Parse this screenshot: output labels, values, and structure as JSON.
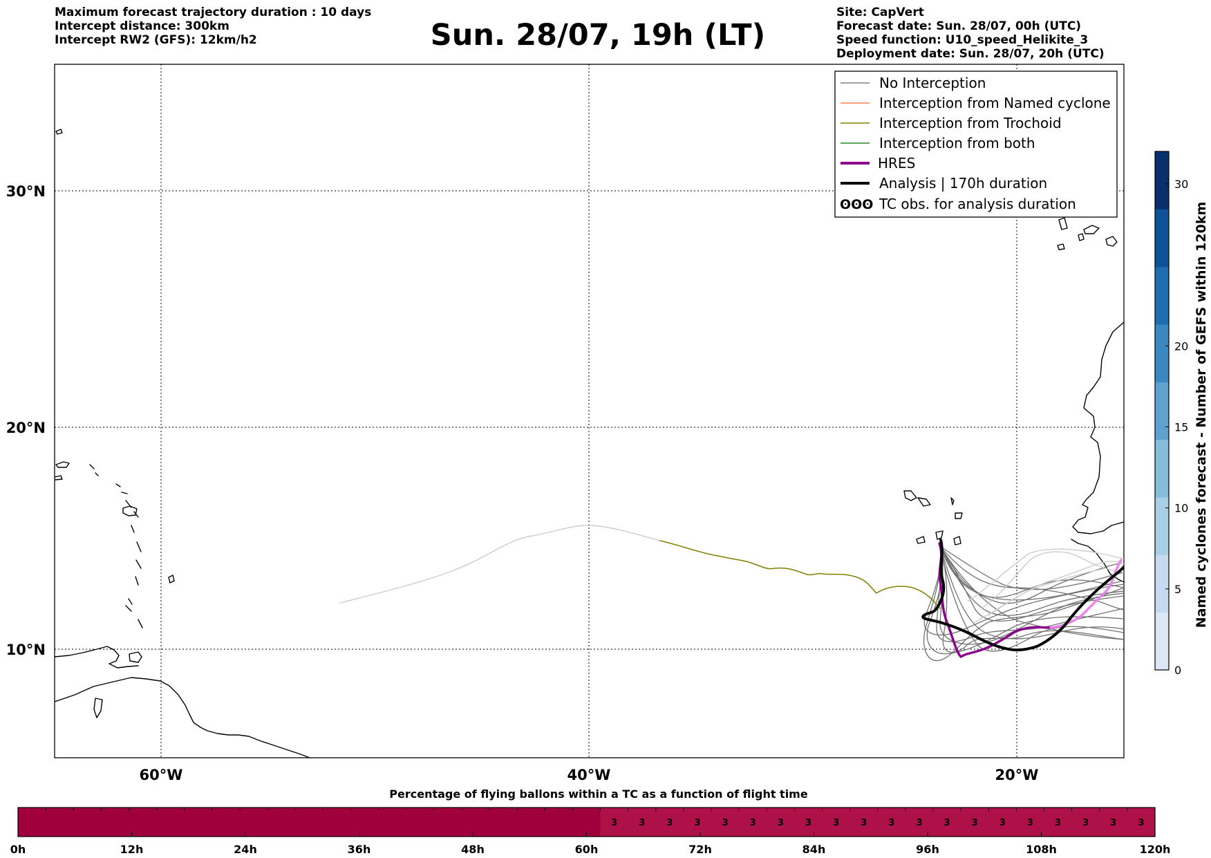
{
  "header_left": [
    "Maximum forecast trajectory duration : 10 days",
    "Intercept distance: 300km",
    "Intercept RW2 (GFS):  12km/h2"
  ],
  "title": "Sun. 28/07, 19h (LT)",
  "header_right": [
    "Site: CapVert",
    "Forecast date: Sun. 28/07, 00h (UTC)",
    "Speed function: U10_speed_Helikite_3",
    "Deployment date: Sun. 28/07, 20h (UTC)"
  ],
  "map": {
    "lon_range": [
      -65,
      15
    ],
    "lat_range": [
      5.5,
      34.7
    ],
    "lon_ticks": [
      "60°W",
      "40°W",
      "20°W"
    ],
    "lat_ticks": [
      "30°N",
      "20°N",
      "10°N"
    ],
    "grid": "dotted",
    "legend": [
      {
        "label": "No Interception",
        "color": "#808080"
      },
      {
        "label": "Interception from Named cyclone",
        "color": "#ff7f50"
      },
      {
        "label": "Interception from Trochoid",
        "color": "#808000"
      },
      {
        "label": "Interception from both",
        "color": "#228b22"
      },
      {
        "label": "HRES",
        "color": "#8b008b"
      },
      {
        "label": "Analysis | 170h duration",
        "color": "#000000"
      },
      {
        "label": "TC obs. for analysis duration",
        "symbol": "ʘʘʘ"
      }
    ]
  },
  "colorbar": {
    "label": "Named cyclones forecast - Number of GEFS within 120km",
    "ticks": [
      "0",
      "5",
      "10",
      "15",
      "20",
      "30"
    ],
    "colors": [
      "#dbe7f5",
      "#c6dbef",
      "#a9cfe5",
      "#85bcdc",
      "#5fa2d0",
      "#3b87c0",
      "#1f6db1",
      "#0d5299",
      "#08306b"
    ]
  },
  "timeline": {
    "title": "Percentage of flying ballons within a TC as a function of flight time",
    "ticks": [
      "0h",
      "12h",
      "24h",
      "36h",
      "48h",
      "60h",
      "72h",
      "84h",
      "96h",
      "108h",
      "120h"
    ],
    "values": [
      "",
      "",
      "",
      "",
      "",
      "",
      "",
      "",
      "",
      "",
      "",
      "",
      "",
      "",
      "",
      "",
      "",
      "",
      "",
      "",
      "",
      "3",
      "3",
      "3",
      "3",
      "3",
      "3",
      "3",
      "3",
      "3",
      "3",
      "3",
      "3",
      "3",
      "3",
      "3",
      "3",
      "3",
      "3",
      "3",
      "3"
    ],
    "color_empty": "#a0003c",
    "color_filled": "#ad1147"
  }
}
